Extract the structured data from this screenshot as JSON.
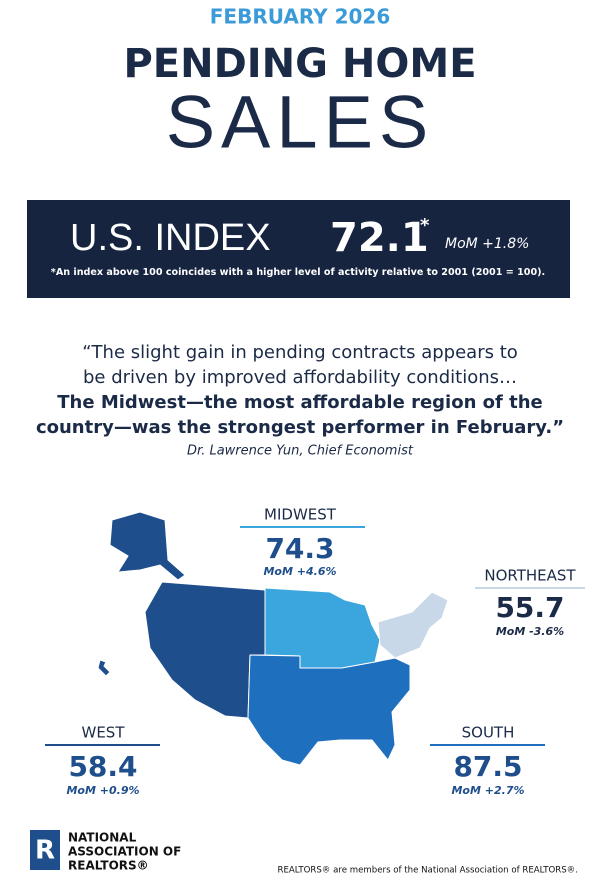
{
  "header": {
    "date": "FEBRUARY 2026",
    "title_line1": "PENDING HOME",
    "title_line2": "SALES"
  },
  "index_box": {
    "label": "U.S. INDEX",
    "value": 72.1,
    "marker": "*",
    "change": "MoM +1.8%",
    "footnote": "*An index above 100 coincides with a higher level of activity relative to 2001 (2001 = 100)."
  },
  "quote": {
    "regular_lines": [
      "“The slight gain in pending contracts appears to",
      "be driven by improved affordability conditions…"
    ],
    "bold_lines": [
      "The Midwest—the most affordable region of the",
      "country—was the strongest performer in February.”"
    ],
    "attribution": "Dr. Lawrence Yun, Chief Economist"
  },
  "regions": [
    {
      "name": "MIDWEST",
      "index": 74.3,
      "change": "MoM +4.6%"
    },
    {
      "name": "NORTHEAST",
      "index": 55.7,
      "change": "MoM -3.6%"
    },
    {
      "name": "WEST",
      "index": 58.4,
      "change": "MoM +0.9%"
    },
    {
      "name": "SOUTH",
      "index": 87.5,
      "change": "MoM +2.7%"
    }
  ],
  "footer": {
    "logo_lines": [
      "NATIONAL",
      "ASSOCIATION OF",
      "REALTORS®"
    ],
    "logo_letter": "R",
    "note": "REALTORS® are members of the National Association of REALTORS®."
  }
}
